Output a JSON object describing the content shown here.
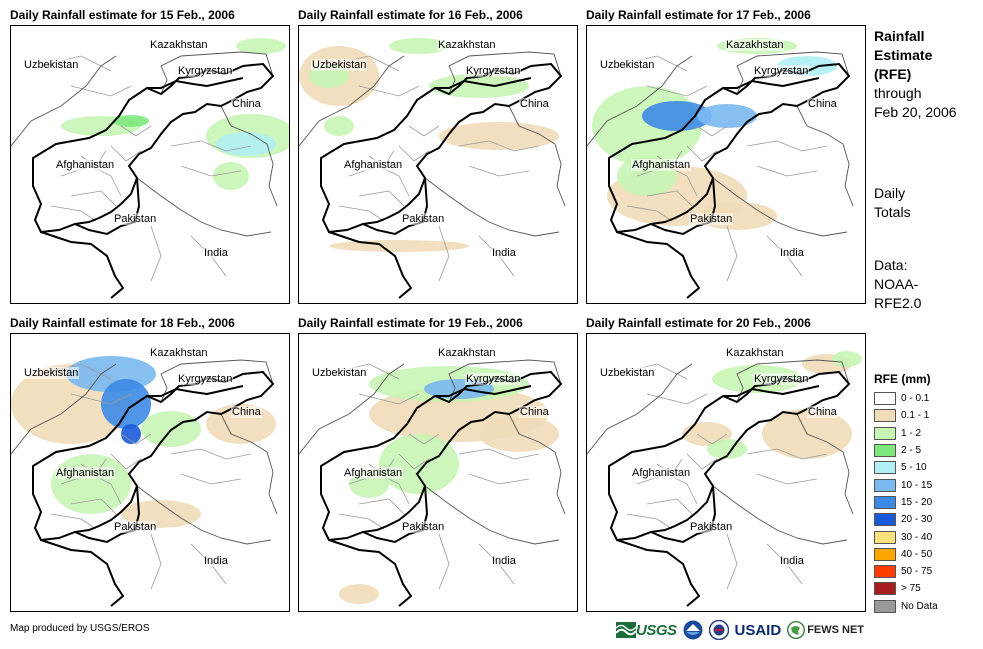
{
  "panels": [
    {
      "title": "Daily Rainfall estimate for 15 Feb., 2006"
    },
    {
      "title": "Daily Rainfall estimate for 16 Feb., 2006"
    },
    {
      "title": "Daily Rainfall estimate for 17 Feb., 2006"
    },
    {
      "title": "Daily Rainfall estimate for 18 Feb., 2006"
    },
    {
      "title": "Daily Rainfall estimate for 19 Feb., 2006"
    },
    {
      "title": "Daily Rainfall estimate for 20 Feb., 2006"
    }
  ],
  "countries": {
    "kazakhstan": "Kazakhstan",
    "kyrgyzstan": "Kyrgyzstan",
    "uzbekistan": "Uzbekistan",
    "china": "China",
    "afghanistan": "Afghanistan",
    "pakistan": "Pakistan",
    "india": "India"
  },
  "side": {
    "title_lines": [
      "Rainfall",
      "Estimate",
      "(RFE)"
    ],
    "through_lines": [
      "through",
      "Feb 20, 2006"
    ],
    "daily_lines": [
      "Daily",
      "Totals"
    ],
    "data_lines": [
      "Data:",
      "NOAA-",
      "RFE2.0"
    ]
  },
  "legend": {
    "title": "RFE (mm)",
    "items": [
      {
        "label": "0 - 0.1",
        "color": "#ffffff"
      },
      {
        "label": "0.1 - 1",
        "color": "#f0dcb8"
      },
      {
        "label": "1 - 2",
        "color": "#c6f5b4"
      },
      {
        "label": "2 - 5",
        "color": "#7ee87e"
      },
      {
        "label": "5 - 10",
        "color": "#b0f0f4"
      },
      {
        "label": "10 - 15",
        "color": "#7ab8f0"
      },
      {
        "label": "15 - 20",
        "color": "#3c8ae6"
      },
      {
        "label": "20 - 30",
        "color": "#1a5ad8"
      },
      {
        "label": "30 - 40",
        "color": "#fce07a"
      },
      {
        "label": "40 - 50",
        "color": "#ffa500"
      },
      {
        "label": "50 - 75",
        "color": "#ff3c00"
      },
      {
        "label": "> 75",
        "color": "#a81e1e"
      },
      {
        "label": "No Data",
        "color": "#999999"
      }
    ]
  },
  "credit": "Map produced by USGS/EROS",
  "logos": {
    "usgs": "USGS",
    "usaid": "USAID",
    "fews": "FEWS NET"
  },
  "colors": {
    "tan": "#f0dcb8",
    "light_green": "#c6f5b4",
    "green": "#7ee87e",
    "cyan": "#b0f0f4",
    "light_blue": "#7ab8f0",
    "blue": "#3c8ae6",
    "dark_blue": "#1a5ad8"
  }
}
